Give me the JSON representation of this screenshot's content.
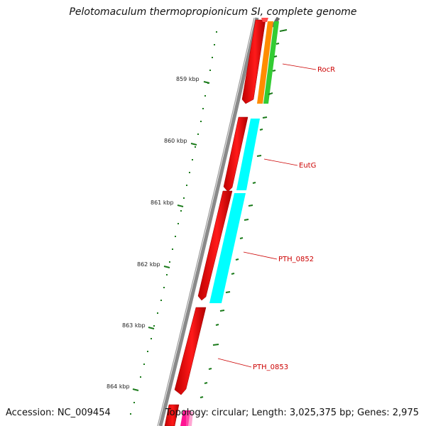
{
  "title": "Pelotomaculum thermopropionicum SI, complete genome",
  "footer": {
    "accession": "Accession: NC_009454",
    "topology": "Topology: circular; Length: 3,025,375 bp; Genes: 2,975"
  },
  "scale_marks": [
    {
      "label": "859 kbp",
      "kbp": 859
    },
    {
      "label": "860 kbp",
      "kbp": 860
    },
    {
      "label": "861 kbp",
      "kbp": 861
    },
    {
      "label": "862 kbp",
      "kbp": 862
    },
    {
      "label": "863 kbp",
      "kbp": 863
    },
    {
      "label": "864 kbp",
      "kbp": 864
    }
  ],
  "gene_labels": [
    "RocR",
    "EutG",
    "PTH_0852",
    "PTH_0853"
  ],
  "colors": {
    "backbone": "#8a8a8a",
    "cds": "#ff0000",
    "cds_shade": "#a00000",
    "cog_cyan": "#00ffff",
    "cog_orange": "#ff8c00",
    "cog_green": "#33cc33",
    "cog_pink": "#ff1493",
    "gc_tick": "#1a7a1a",
    "label": "#cc0000"
  }
}
